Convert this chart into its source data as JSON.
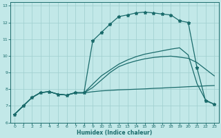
{
  "xlabel": "Humidex (Indice chaleur)",
  "bg_color": "#c2e8e8",
  "line_color": "#1a6b6b",
  "grid_color": "#9ecece",
  "xlim": [
    -0.5,
    23.5
  ],
  "ylim": [
    6,
    13.2
  ],
  "xticks": [
    0,
    1,
    2,
    3,
    4,
    5,
    6,
    7,
    8,
    9,
    10,
    11,
    12,
    13,
    14,
    15,
    16,
    17,
    18,
    19,
    20,
    21,
    22,
    23
  ],
  "yticks": [
    6,
    7,
    8,
    9,
    10,
    11,
    12,
    13
  ],
  "curve_main_x": [
    0,
    1,
    2,
    3,
    4,
    5,
    6,
    7,
    8,
    9,
    10,
    11,
    12,
    13,
    14,
    15,
    16,
    17,
    18,
    19,
    20,
    21,
    22,
    23
  ],
  "curve_main_y": [
    6.5,
    7.0,
    7.5,
    7.8,
    7.85,
    7.7,
    7.65,
    7.8,
    7.8,
    10.9,
    11.4,
    11.9,
    12.35,
    12.45,
    12.57,
    12.62,
    12.57,
    12.5,
    12.45,
    12.1,
    12.0,
    9.3,
    7.3,
    7.1
  ],
  "curve_flat_x": [
    0,
    1,
    2,
    3,
    4,
    5,
    6,
    7,
    8,
    9,
    10,
    11,
    12,
    13,
    14,
    15,
    16,
    17,
    18,
    19,
    20,
    21,
    22,
    23
  ],
  "curve_flat_y": [
    6.5,
    7.0,
    7.5,
    7.8,
    7.85,
    7.7,
    7.65,
    7.78,
    7.78,
    7.85,
    7.9,
    7.93,
    7.96,
    7.98,
    8.0,
    8.02,
    8.05,
    8.07,
    8.1,
    8.12,
    8.15,
    8.17,
    8.2,
    8.22
  ],
  "curve_diag_x": [
    0,
    1,
    2,
    3,
    4,
    5,
    6,
    7,
    8,
    9,
    10,
    11,
    12,
    13,
    14,
    15,
    16,
    17,
    18,
    19,
    20,
    21,
    22,
    23
  ],
  "curve_diag_y": [
    6.5,
    7.0,
    7.5,
    7.8,
    7.85,
    7.7,
    7.65,
    7.78,
    7.78,
    8.3,
    8.8,
    9.15,
    9.5,
    9.75,
    9.95,
    10.1,
    10.2,
    10.3,
    10.4,
    10.48,
    10.05,
    8.35,
    7.35,
    7.1
  ],
  "curve_rise_x": [
    0,
    1,
    2,
    3,
    4,
    5,
    6,
    7,
    8,
    9,
    10,
    11,
    12,
    13,
    14,
    15,
    16,
    17,
    18,
    19,
    20,
    21,
    22,
    23
  ],
  "curve_rise_y": [
    6.5,
    7.0,
    7.5,
    7.8,
    7.85,
    7.7,
    7.65,
    7.78,
    7.78,
    8.1,
    8.55,
    9.0,
    9.35,
    9.55,
    9.7,
    9.82,
    9.9,
    9.95,
    9.98,
    9.92,
    9.85,
    9.6,
    9.2,
    8.8
  ]
}
